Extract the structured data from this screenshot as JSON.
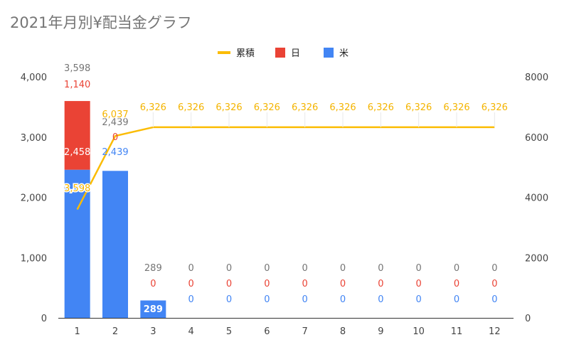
{
  "chart_data": {
    "type": "bar",
    "title": "2021年月別¥配当金グラフ",
    "categories": [
      "1",
      "2",
      "3",
      "4",
      "5",
      "6",
      "7",
      "8",
      "9",
      "10",
      "11",
      "12"
    ],
    "series": [
      {
        "name": "米",
        "kind": "bar",
        "axis": "left",
        "color": "#4285f4",
        "values": [
          2458,
          2439,
          289,
          0,
          0,
          0,
          0,
          0,
          0,
          0,
          0,
          0
        ]
      },
      {
        "name": "日",
        "kind": "bar",
        "axis": "left",
        "color": "#ea4335",
        "values": [
          1140,
          0,
          0,
          0,
          0,
          0,
          0,
          0,
          0,
          0,
          0,
          0
        ]
      },
      {
        "name": "累積",
        "kind": "line",
        "axis": "right",
        "color": "#fbbc04",
        "values": [
          3598,
          6037,
          6326,
          6326,
          6326,
          6326,
          6326,
          6326,
          6326,
          6326,
          6326,
          6326
        ]
      }
    ],
    "totals": [
      3598,
      2439,
      289,
      0,
      0,
      0,
      0,
      0,
      0,
      0,
      0,
      0
    ],
    "total_color": "#757575",
    "left_axis": {
      "ylim": [
        0,
        4000
      ],
      "ticks": [
        "0",
        "1,000",
        "2,000",
        "3,000",
        "4,000"
      ]
    },
    "right_axis": {
      "ylim": [
        0,
        8000
      ],
      "ticks": [
        "0",
        "2000",
        "4000",
        "6000",
        "8000"
      ]
    },
    "legend_position": "top",
    "grid": false
  }
}
